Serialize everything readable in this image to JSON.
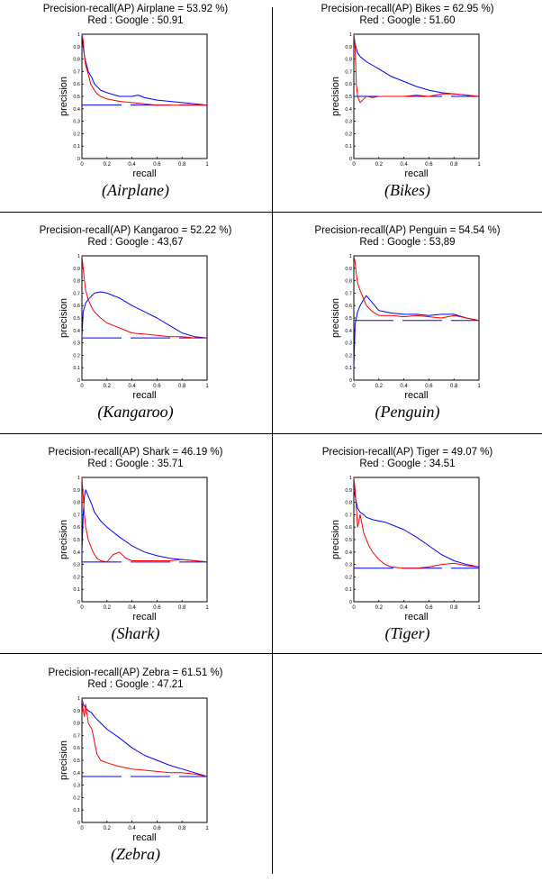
{
  "chart_data": [
    {
      "type": "line",
      "title": "Precision-recall(AP)   Airplane  = 53.92 %)",
      "subtitle": "Red : Google : 50.91",
      "caption": "(Airplane)",
      "xlabel": "recall",
      "ylabel": "precision",
      "xlim": [
        0,
        1
      ],
      "ylim": [
        0,
        1
      ],
      "xticks": [
        "0",
        "0.2",
        "0.4",
        "0.6",
        "0.8",
        "1"
      ],
      "yticks": [
        "0",
        "0.1",
        "0.2",
        "0.3",
        "0.4",
        "0.5",
        "0.6",
        "0.7",
        "0.8",
        "0.9",
        "1"
      ],
      "baseline": 0.43,
      "series": [
        {
          "color": "#0000ff",
          "x": [
            0,
            0.01,
            0.02,
            0.03,
            0.05,
            0.08,
            0.1,
            0.15,
            0.2,
            0.3,
            0.4,
            0.45,
            0.5,
            0.6,
            0.7,
            0.8,
            0.9,
            1.0
          ],
          "y": [
            1.0,
            0.9,
            0.82,
            0.78,
            0.7,
            0.65,
            0.6,
            0.55,
            0.53,
            0.5,
            0.5,
            0.51,
            0.49,
            0.47,
            0.46,
            0.45,
            0.44,
            0.43
          ]
        },
        {
          "color": "#ff0000",
          "x": [
            0,
            0.01,
            0.02,
            0.03,
            0.05,
            0.07,
            0.1,
            0.12,
            0.15,
            0.2,
            0.3,
            0.4,
            0.5,
            0.6,
            0.7,
            0.8,
            0.9,
            1.0
          ],
          "y": [
            1.0,
            0.95,
            0.82,
            0.75,
            0.68,
            0.6,
            0.55,
            0.52,
            0.5,
            0.48,
            0.46,
            0.45,
            0.44,
            0.43,
            0.43,
            0.43,
            0.43,
            0.43
          ]
        }
      ]
    },
    {
      "type": "line",
      "title": "Precision-recall(AP)   Bikes  = 62.95 %)",
      "subtitle": "Red : Google : 51.60",
      "caption": "(Bikes)",
      "xlabel": "recall",
      "ylabel": "precision",
      "xlim": [
        0,
        1
      ],
      "ylim": [
        0,
        1
      ],
      "xticks": [
        "0",
        "0.2",
        "0.4",
        "0.6",
        "0.8",
        "1"
      ],
      "yticks": [
        "0",
        "0.1",
        "0.2",
        "0.3",
        "0.4",
        "0.5",
        "0.6",
        "0.7",
        "0.8",
        "0.9",
        "1"
      ],
      "baseline": 0.5,
      "series": [
        {
          "color": "#0000ff",
          "x": [
            0,
            0.01,
            0.03,
            0.05,
            0.1,
            0.15,
            0.2,
            0.3,
            0.4,
            0.5,
            0.6,
            0.7,
            0.8,
            0.9,
            1.0
          ],
          "y": [
            1.0,
            0.92,
            0.85,
            0.82,
            0.78,
            0.75,
            0.72,
            0.66,
            0.62,
            0.58,
            0.55,
            0.53,
            0.52,
            0.51,
            0.5
          ]
        },
        {
          "color": "#ff0000",
          "x": [
            0,
            0.01,
            0.02,
            0.03,
            0.05,
            0.08,
            0.1,
            0.15,
            0.2,
            0.3,
            0.4,
            0.5,
            0.6,
            0.7,
            0.8,
            0.9,
            1.0
          ],
          "y": [
            1.0,
            0.9,
            0.6,
            0.5,
            0.45,
            0.48,
            0.5,
            0.49,
            0.5,
            0.5,
            0.5,
            0.51,
            0.5,
            0.52,
            0.52,
            0.51,
            0.5
          ]
        }
      ]
    },
    {
      "type": "line",
      "title": "Precision-recall(AP)   Kangaroo  = 52.22 %)",
      "subtitle": "Red : Google : 43,67",
      "caption": "(Kangaroo)",
      "xlabel": "recall",
      "ylabel": "precision",
      "xlim": [
        0,
        1
      ],
      "ylim": [
        0,
        1
      ],
      "xticks": [
        "0",
        "0.2",
        "0.4",
        "0.6",
        "0.8",
        "1"
      ],
      "yticks": [
        "0",
        "0.1",
        "0.2",
        "0.3",
        "0.4",
        "0.5",
        "0.6",
        "0.7",
        "0.8",
        "0.9",
        "1"
      ],
      "baseline": 0.34,
      "series": [
        {
          "color": "#0000ff",
          "x": [
            0,
            0.01,
            0.03,
            0.05,
            0.08,
            0.1,
            0.15,
            0.2,
            0.3,
            0.4,
            0.5,
            0.6,
            0.7,
            0.8,
            0.9,
            1.0
          ],
          "y": [
            0.35,
            0.55,
            0.62,
            0.65,
            0.68,
            0.7,
            0.71,
            0.7,
            0.66,
            0.6,
            0.55,
            0.5,
            0.44,
            0.38,
            0.35,
            0.34
          ]
        },
        {
          "color": "#ff0000",
          "x": [
            0,
            0.01,
            0.02,
            0.03,
            0.05,
            0.08,
            0.1,
            0.15,
            0.2,
            0.3,
            0.4,
            0.5,
            0.6,
            0.7,
            0.8,
            0.9,
            1.0
          ],
          "y": [
            1.0,
            0.9,
            0.8,
            0.72,
            0.65,
            0.58,
            0.55,
            0.5,
            0.46,
            0.42,
            0.38,
            0.37,
            0.36,
            0.35,
            0.35,
            0.34,
            0.34
          ]
        }
      ]
    },
    {
      "type": "line",
      "title": "Precision-recall(AP)   Penguin  = 54.54 %)",
      "subtitle": "Red : Google : 53,89",
      "caption": "(Penguin)",
      "xlabel": "recall",
      "ylabel": "precision",
      "xlim": [
        0,
        1
      ],
      "ylim": [
        0,
        1
      ],
      "xticks": [
        "0",
        "0.2",
        "0.4",
        "0.6",
        "0.8",
        "1"
      ],
      "yticks": [
        "0",
        "0.1",
        "0.2",
        "0.3",
        "0.4",
        "0.5",
        "0.6",
        "0.7",
        "0.8",
        "0.9",
        "1"
      ],
      "baseline": 0.48,
      "series": [
        {
          "color": "#0000ff",
          "x": [
            0,
            0.01,
            0.03,
            0.05,
            0.08,
            0.1,
            0.15,
            0.2,
            0.3,
            0.4,
            0.5,
            0.6,
            0.7,
            0.8,
            0.9,
            1.0
          ],
          "y": [
            0.1,
            0.45,
            0.55,
            0.6,
            0.65,
            0.68,
            0.62,
            0.56,
            0.54,
            0.53,
            0.53,
            0.52,
            0.53,
            0.53,
            0.5,
            0.48
          ]
        },
        {
          "color": "#ff0000",
          "x": [
            0,
            0.01,
            0.02,
            0.03,
            0.05,
            0.08,
            0.1,
            0.15,
            0.2,
            0.3,
            0.4,
            0.5,
            0.6,
            0.7,
            0.8,
            0.9,
            1.0
          ],
          "y": [
            1.0,
            0.95,
            0.85,
            0.78,
            0.72,
            0.65,
            0.6,
            0.55,
            0.52,
            0.52,
            0.51,
            0.52,
            0.51,
            0.5,
            0.52,
            0.5,
            0.48
          ]
        }
      ]
    },
    {
      "type": "line",
      "title": "Precision-recall(AP)   Shark  = 46.19 %)",
      "subtitle": "Red : Google : 35.71",
      "caption": "(Shark)",
      "xlabel": "recall",
      "ylabel": "precision",
      "xlim": [
        0,
        1
      ],
      "ylim": [
        0,
        1
      ],
      "xticks": [
        "0",
        "0.2",
        "0.4",
        "0.6",
        "0.8",
        "1"
      ],
      "yticks": [
        "0",
        "0.1",
        "0.2",
        "0.3",
        "0.4",
        "0.5",
        "0.6",
        "0.7",
        "0.8",
        "0.9",
        "1"
      ],
      "baseline": 0.32,
      "series": [
        {
          "color": "#0000ff",
          "x": [
            0,
            0.01,
            0.02,
            0.03,
            0.05,
            0.08,
            0.1,
            0.15,
            0.2,
            0.3,
            0.4,
            0.5,
            0.6,
            0.7,
            0.8,
            0.9,
            1.0
          ],
          "y": [
            0.4,
            0.7,
            0.85,
            0.9,
            0.85,
            0.78,
            0.72,
            0.65,
            0.6,
            0.52,
            0.45,
            0.4,
            0.37,
            0.35,
            0.34,
            0.33,
            0.32
          ]
        },
        {
          "color": "#ff0000",
          "x": [
            0,
            0.01,
            0.02,
            0.03,
            0.05,
            0.08,
            0.1,
            0.12,
            0.15,
            0.2,
            0.25,
            0.3,
            0.35,
            0.4,
            0.5,
            0.6,
            0.7,
            0.8,
            0.9,
            1.0
          ],
          "y": [
            1.0,
            0.85,
            0.7,
            0.6,
            0.5,
            0.42,
            0.38,
            0.35,
            0.33,
            0.32,
            0.38,
            0.4,
            0.35,
            0.33,
            0.33,
            0.33,
            0.33,
            0.34,
            0.33,
            0.32
          ]
        }
      ]
    },
    {
      "type": "line",
      "title": "Precision-recall(AP)   Tiger  = 49.07 %)",
      "subtitle": "Red : Google : 34.51",
      "caption": "(Tiger)",
      "xlabel": "recall",
      "ylabel": "precision",
      "xlim": [
        0,
        1
      ],
      "ylim": [
        0,
        1
      ],
      "xticks": [
        "0",
        "0.2",
        "0.4",
        "0.6",
        "0.8",
        "1"
      ],
      "yticks": [
        "0",
        "0.1",
        "0.2",
        "0.3",
        "0.4",
        "0.5",
        "0.6",
        "0.7",
        "0.8",
        "0.9",
        "1"
      ],
      "baseline": 0.27,
      "series": [
        {
          "color": "#0000ff",
          "x": [
            0,
            0.01,
            0.02,
            0.03,
            0.05,
            0.08,
            0.1,
            0.15,
            0.2,
            0.25,
            0.3,
            0.4,
            0.5,
            0.6,
            0.7,
            0.8,
            0.9,
            1.0
          ],
          "y": [
            0.9,
            0.85,
            0.8,
            0.75,
            0.72,
            0.7,
            0.68,
            0.66,
            0.65,
            0.64,
            0.62,
            0.58,
            0.52,
            0.45,
            0.38,
            0.33,
            0.3,
            0.28
          ]
        },
        {
          "color": "#ff0000",
          "x": [
            0,
            0.01,
            0.02,
            0.03,
            0.05,
            0.08,
            0.1,
            0.12,
            0.15,
            0.2,
            0.25,
            0.3,
            0.4,
            0.5,
            0.6,
            0.7,
            0.8,
            0.9,
            1.0
          ],
          "y": [
            1.0,
            0.9,
            0.75,
            0.6,
            0.7,
            0.55,
            0.5,
            0.45,
            0.4,
            0.34,
            0.3,
            0.28,
            0.27,
            0.27,
            0.28,
            0.3,
            0.31,
            0.29,
            0.28
          ]
        }
      ]
    },
    {
      "type": "line",
      "title": "Precision-recall(AP)   Zebra  = 61.51 %)",
      "subtitle": "Red : Google : 47.21",
      "caption": "(Zebra)",
      "xlabel": "recall",
      "ylabel": "precision",
      "xlim": [
        0,
        1
      ],
      "ylim": [
        0,
        1
      ],
      "xticks": [
        "0",
        "0.2",
        "0.4",
        "0.6",
        "0.8",
        "1"
      ],
      "yticks": [
        "0",
        "0.1",
        "0.2",
        "0.3",
        "0.4",
        "0.5",
        "0.6",
        "0.7",
        "0.8",
        "0.9",
        "1"
      ],
      "baseline": 0.37,
      "series": [
        {
          "color": "#0000ff",
          "x": [
            0,
            0.01,
            0.03,
            0.05,
            0.08,
            0.1,
            0.15,
            0.2,
            0.3,
            0.4,
            0.5,
            0.6,
            0.7,
            0.8,
            0.9,
            1.0
          ],
          "y": [
            1.0,
            0.95,
            0.92,
            0.9,
            0.88,
            0.85,
            0.8,
            0.75,
            0.68,
            0.6,
            0.54,
            0.5,
            0.46,
            0.43,
            0.4,
            0.37
          ]
        },
        {
          "color": "#ff0000",
          "x": [
            0,
            0.01,
            0.02,
            0.03,
            0.05,
            0.08,
            0.1,
            0.12,
            0.15,
            0.2,
            0.3,
            0.4,
            0.5,
            0.6,
            0.7,
            0.8,
            0.9,
            1.0
          ],
          "y": [
            1.0,
            0.9,
            0.85,
            0.95,
            0.8,
            0.75,
            0.65,
            0.55,
            0.5,
            0.48,
            0.45,
            0.43,
            0.42,
            0.41,
            0.4,
            0.4,
            0.39,
            0.37
          ]
        }
      ]
    }
  ]
}
